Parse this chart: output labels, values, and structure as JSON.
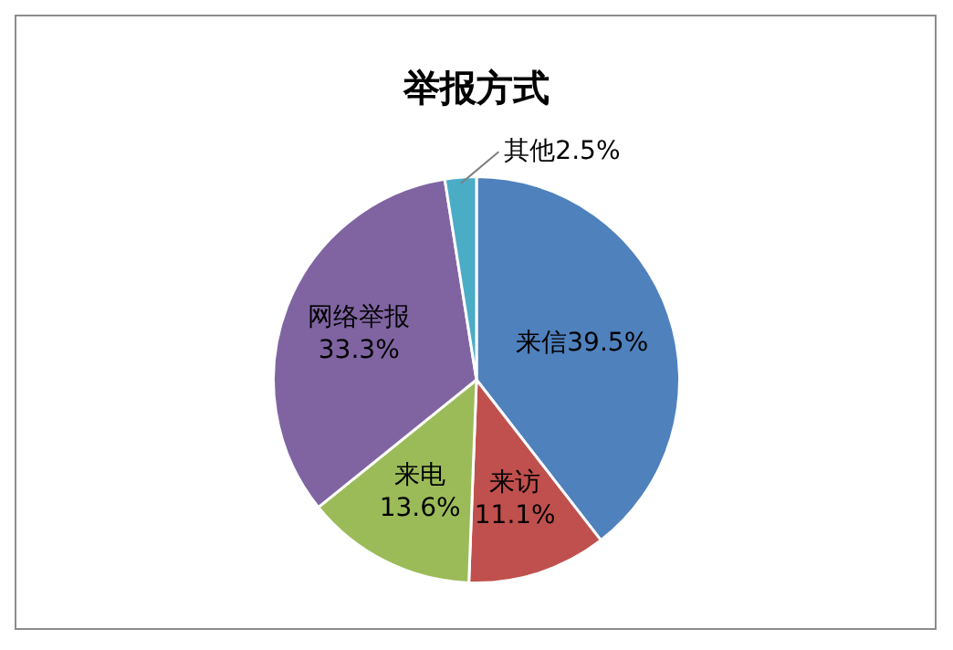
{
  "chart_data": {
    "type": "pie",
    "title": "举报方式",
    "categories": [
      "来信",
      "来访",
      "来电",
      "网络举报",
      "其他"
    ],
    "values": [
      39.5,
      11.1,
      13.6,
      33.3,
      2.5
    ],
    "colors": [
      "#4f81bd",
      "#c0504d",
      "#9bbb59",
      "#8064a2",
      "#4bacc6"
    ],
    "value_labels": [
      "39.5%",
      "11.1%",
      "13.6%",
      "33.3%",
      "2.5%"
    ],
    "legend": false
  }
}
